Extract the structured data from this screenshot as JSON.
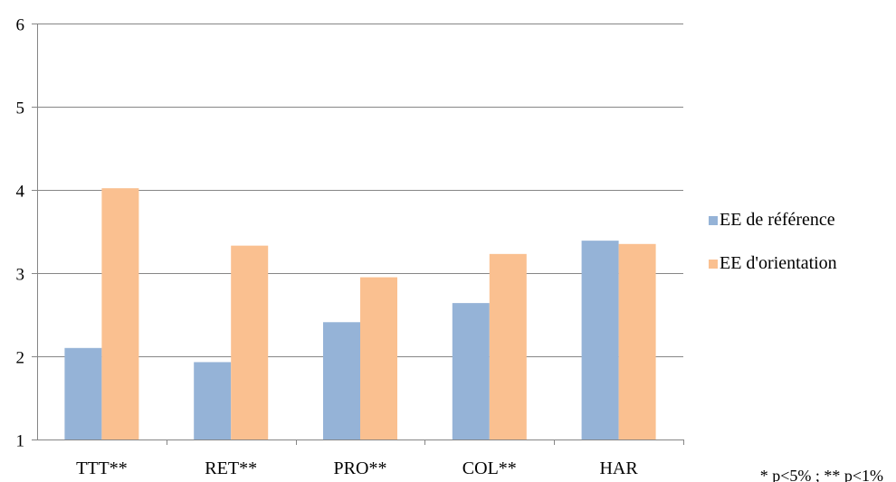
{
  "chart_data": {
    "type": "bar",
    "title": "",
    "xlabel": "",
    "ylabel": "",
    "categories": [
      "TTT**",
      "RET**",
      "PRO**",
      "COL**",
      "HAR"
    ],
    "series": [
      {
        "name": "EE de référence",
        "color": "#95b3d7",
        "values": [
          2.1,
          1.93,
          2.41,
          2.64,
          3.39
        ]
      },
      {
        "name": "EE d'orientation",
        "color": "#fac090",
        "values": [
          4.02,
          3.33,
          2.95,
          3.23,
          3.35
        ]
      }
    ],
    "ylim": [
      1,
      6
    ],
    "yticks": [
      1,
      2,
      3,
      4,
      5,
      6
    ],
    "grid": true,
    "legend": "right",
    "note": "* p<5% ; ** p<1%"
  }
}
